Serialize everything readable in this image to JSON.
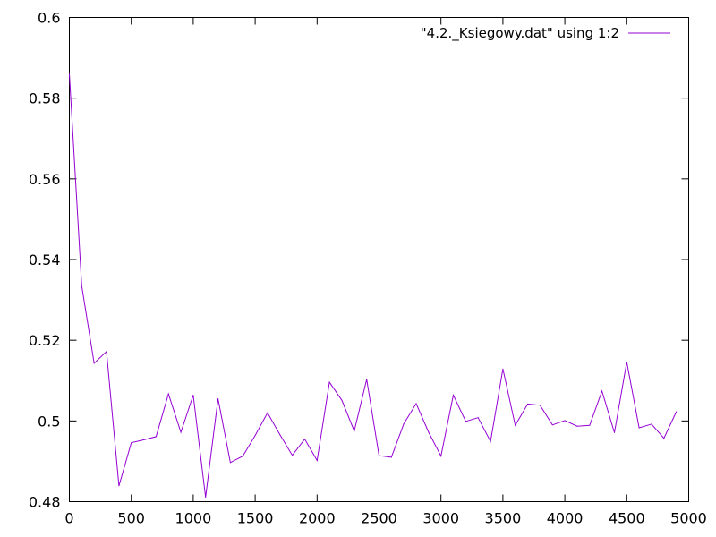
{
  "chart_data": {
    "type": "line",
    "title": "",
    "xlabel": "",
    "ylabel": "",
    "xlim": [
      0,
      5000
    ],
    "ylim": [
      0.48,
      0.6
    ],
    "xticks": [
      0,
      500,
      1000,
      1500,
      2000,
      2500,
      3000,
      3500,
      4000,
      4500,
      5000
    ],
    "xtick_labels": [
      "0",
      "500",
      "1000",
      "1500",
      "2000",
      "2500",
      "3000",
      "3500",
      "4000",
      "4500",
      "5000"
    ],
    "yticks": [
      0.48,
      0.5,
      0.52,
      0.54,
      0.56,
      0.58,
      0.6
    ],
    "ytick_labels": [
      "0.48",
      "0.5",
      "0.52",
      "0.54",
      "0.56",
      "0.58",
      "0.6"
    ],
    "grid": false,
    "legend_position": "top-right",
    "series": [
      {
        "name": "\"4.2._Ksiegowy.dat\" using 1:2",
        "color": "#9400d3",
        "x": [
          0,
          100,
          200,
          300,
          400,
          500,
          600,
          700,
          800,
          900,
          1000,
          1100,
          1200,
          1300,
          1400,
          1500,
          1600,
          1700,
          1800,
          1900,
          2000,
          2100,
          2200,
          2300,
          2400,
          2500,
          2600,
          2700,
          2800,
          2900,
          3000,
          3100,
          3200,
          3300,
          3400,
          3500,
          3600,
          3700,
          3800,
          3900,
          4000,
          4100,
          4200,
          4300,
          4400,
          4500,
          4600,
          4700,
          4800,
          4900
        ],
        "y": [
          0.586,
          0.5335,
          0.5143,
          0.5172,
          0.4839,
          0.4946,
          0.4953,
          0.4961,
          0.5067,
          0.4972,
          0.5064,
          0.4811,
          0.5055,
          0.4897,
          0.4913,
          0.4964,
          0.502,
          0.4966,
          0.4915,
          0.4955,
          0.4902,
          0.5096,
          0.5051,
          0.4975,
          0.5103,
          0.4914,
          0.491,
          0.4993,
          0.5043,
          0.4972,
          0.4913,
          0.5064,
          0.4999,
          0.5008,
          0.4949,
          0.5129,
          0.4989,
          0.5042,
          0.5039,
          0.499,
          0.5001,
          0.4987,
          0.4989,
          0.5074,
          0.4971,
          0.5146,
          0.4983,
          0.4992,
          0.4957,
          0.5023
        ]
      }
    ]
  }
}
